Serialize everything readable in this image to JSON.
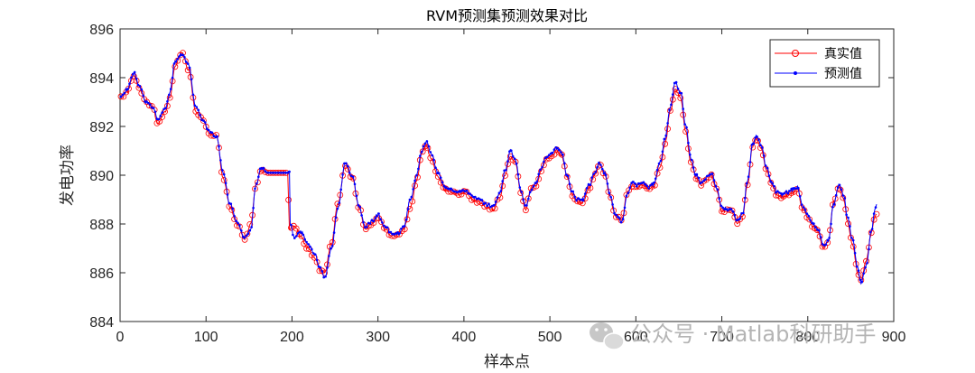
{
  "watermark": {
    "text": "公众号 · Matlab科研助手",
    "icon": "wechat-icon"
  },
  "chart_data": {
    "type": "line",
    "title": "RVM预测集预测效果对比",
    "xlabel": "样本点",
    "ylabel": "发电功率",
    "xlim": [
      0,
      900
    ],
    "ylim": [
      884,
      896
    ],
    "xticks": [
      0,
      100,
      200,
      300,
      400,
      500,
      600,
      700,
      800,
      900
    ],
    "yticks": [
      884,
      886,
      888,
      890,
      892,
      894,
      896
    ],
    "grid": false,
    "legend_position": "top-right",
    "x_range": [
      1,
      880
    ],
    "series": [
      {
        "name": "真实值",
        "color": "#ff0000",
        "marker": "circle",
        "keypoints": [
          [
            1,
            893.2
          ],
          [
            8,
            893.4
          ],
          [
            16,
            894.1
          ],
          [
            22,
            893.6
          ],
          [
            30,
            893.0
          ],
          [
            38,
            892.8
          ],
          [
            44,
            892.1
          ],
          [
            52,
            892.6
          ],
          [
            58,
            893.2
          ],
          [
            64,
            894.5
          ],
          [
            72,
            895.0
          ],
          [
            80,
            894.3
          ],
          [
            88,
            892.6
          ],
          [
            96,
            892.3
          ],
          [
            104,
            891.7
          ],
          [
            112,
            891.6
          ],
          [
            120,
            889.9
          ],
          [
            128,
            888.7
          ],
          [
            136,
            888.0
          ],
          [
            145,
            887.4
          ],
          [
            152,
            888.0
          ],
          [
            158,
            889.6
          ],
          [
            164,
            890.2
          ],
          [
            172,
            890.1
          ],
          [
            190,
            890.1
          ],
          [
            195,
            890.1
          ],
          [
            197,
            887.8
          ],
          [
            203,
            887.9
          ],
          [
            210,
            887.5
          ],
          [
            218,
            887.0
          ],
          [
            226,
            886.6
          ],
          [
            233,
            886.1
          ],
          [
            238,
            886.0
          ],
          [
            246,
            887.2
          ],
          [
            253,
            888.8
          ],
          [
            262,
            890.4
          ],
          [
            270,
            889.9
          ],
          [
            278,
            888.7
          ],
          [
            285,
            887.8
          ],
          [
            293,
            888.0
          ],
          [
            300,
            888.3
          ],
          [
            308,
            887.8
          ],
          [
            316,
            887.5
          ],
          [
            324,
            887.6
          ],
          [
            330,
            887.8
          ],
          [
            338,
            888.7
          ],
          [
            345,
            889.8
          ],
          [
            351,
            890.9
          ],
          [
            356,
            891.2
          ],
          [
            362,
            890.7
          ],
          [
            370,
            889.9
          ],
          [
            378,
            889.4
          ],
          [
            386,
            889.3
          ],
          [
            394,
            889.2
          ],
          [
            402,
            889.3
          ],
          [
            410,
            889.0
          ],
          [
            418,
            888.9
          ],
          [
            426,
            888.7
          ],
          [
            434,
            888.6
          ],
          [
            442,
            889.1
          ],
          [
            448,
            890.0
          ],
          [
            454,
            890.8
          ],
          [
            460,
            890.5
          ],
          [
            466,
            889.3
          ],
          [
            472,
            888.6
          ],
          [
            478,
            889.5
          ],
          [
            484,
            889.6
          ],
          [
            490,
            890.2
          ],
          [
            496,
            890.7
          ],
          [
            502,
            890.8
          ],
          [
            508,
            891.0
          ],
          [
            514,
            890.8
          ],
          [
            520,
            889.9
          ],
          [
            526,
            889.2
          ],
          [
            532,
            888.9
          ],
          [
            538,
            888.9
          ],
          [
            546,
            889.5
          ],
          [
            552,
            890.0
          ],
          [
            558,
            890.5
          ],
          [
            564,
            890.0
          ],
          [
            570,
            889.1
          ],
          [
            576,
            888.3
          ],
          [
            584,
            888.2
          ],
          [
            590,
            889.3
          ],
          [
            596,
            889.6
          ],
          [
            602,
            889.5
          ],
          [
            608,
            889.6
          ],
          [
            614,
            889.4
          ],
          [
            620,
            889.5
          ],
          [
            628,
            890.3
          ],
          [
            634,
            891.3
          ],
          [
            640,
            892.6
          ],
          [
            646,
            893.5
          ],
          [
            652,
            893.2
          ],
          [
            658,
            891.8
          ],
          [
            664,
            890.5
          ],
          [
            670,
            889.9
          ],
          [
            676,
            889.6
          ],
          [
            682,
            889.8
          ],
          [
            688,
            890.0
          ],
          [
            694,
            889.4
          ],
          [
            700,
            888.5
          ],
          [
            706,
            888.6
          ],
          [
            712,
            888.5
          ],
          [
            718,
            888.0
          ],
          [
            724,
            888.3
          ],
          [
            730,
            889.6
          ],
          [
            736,
            891.2
          ],
          [
            740,
            891.5
          ],
          [
            746,
            891.1
          ],
          [
            752,
            890.2
          ],
          [
            758,
            889.6
          ],
          [
            764,
            889.2
          ],
          [
            770,
            889.1
          ],
          [
            776,
            889.2
          ],
          [
            782,
            889.3
          ],
          [
            788,
            889.4
          ],
          [
            794,
            888.6
          ],
          [
            800,
            888.3
          ],
          [
            806,
            887.9
          ],
          [
            812,
            887.7
          ],
          [
            818,
            887.0
          ],
          [
            824,
            887.3
          ],
          [
            830,
            888.9
          ],
          [
            836,
            889.5
          ],
          [
            842,
            889.0
          ],
          [
            846,
            888.1
          ],
          [
            852,
            887.2
          ],
          [
            858,
            886.0
          ],
          [
            862,
            885.7
          ],
          [
            868,
            886.5
          ],
          [
            874,
            887.6
          ],
          [
            878,
            888.3
          ],
          [
            880,
            888.4
          ]
        ]
      },
      {
        "name": "预测值",
        "color": "#0000ff",
        "marker": "point",
        "keypoints": [
          [
            1,
            893.2
          ],
          [
            8,
            893.5
          ],
          [
            16,
            894.2
          ],
          [
            22,
            893.7
          ],
          [
            30,
            893.0
          ],
          [
            38,
            892.8
          ],
          [
            44,
            892.3
          ],
          [
            52,
            892.7
          ],
          [
            58,
            893.4
          ],
          [
            64,
            894.7
          ],
          [
            72,
            895.0
          ],
          [
            80,
            894.5
          ],
          [
            88,
            892.8
          ],
          [
            96,
            892.3
          ],
          [
            104,
            891.8
          ],
          [
            112,
            891.6
          ],
          [
            120,
            890.1
          ],
          [
            128,
            888.8
          ],
          [
            136,
            888.1
          ],
          [
            145,
            887.4
          ],
          [
            152,
            887.8
          ],
          [
            158,
            889.6
          ],
          [
            164,
            890.3
          ],
          [
            172,
            890.1
          ],
          [
            190,
            890.1
          ],
          [
            197,
            890.1
          ],
          [
            198,
            888.0
          ],
          [
            203,
            887.4
          ],
          [
            210,
            887.7
          ],
          [
            218,
            887.2
          ],
          [
            226,
            886.8
          ],
          [
            233,
            886.2
          ],
          [
            238,
            885.8
          ],
          [
            246,
            887.0
          ],
          [
            253,
            888.6
          ],
          [
            262,
            890.5
          ],
          [
            270,
            890.0
          ],
          [
            278,
            888.7
          ],
          [
            285,
            887.9
          ],
          [
            293,
            888.1
          ],
          [
            300,
            888.4
          ],
          [
            308,
            887.9
          ],
          [
            316,
            887.6
          ],
          [
            324,
            887.6
          ],
          [
            330,
            887.9
          ],
          [
            338,
            889.0
          ],
          [
            345,
            890.0
          ],
          [
            351,
            891.0
          ],
          [
            356,
            891.4
          ],
          [
            362,
            890.9
          ],
          [
            370,
            890.1
          ],
          [
            378,
            889.5
          ],
          [
            386,
            889.4
          ],
          [
            394,
            889.3
          ],
          [
            402,
            889.4
          ],
          [
            410,
            889.1
          ],
          [
            418,
            889.0
          ],
          [
            426,
            888.8
          ],
          [
            434,
            888.7
          ],
          [
            442,
            889.3
          ],
          [
            448,
            890.2
          ],
          [
            454,
            891.0
          ],
          [
            460,
            890.6
          ],
          [
            466,
            889.4
          ],
          [
            472,
            888.7
          ],
          [
            478,
            889.4
          ],
          [
            484,
            889.7
          ],
          [
            490,
            890.3
          ],
          [
            496,
            890.8
          ],
          [
            502,
            890.9
          ],
          [
            508,
            891.1
          ],
          [
            514,
            890.9
          ],
          [
            520,
            890.0
          ],
          [
            526,
            889.3
          ],
          [
            532,
            889.0
          ],
          [
            538,
            889.0
          ],
          [
            546,
            889.6
          ],
          [
            552,
            890.1
          ],
          [
            558,
            890.5
          ],
          [
            564,
            890.1
          ],
          [
            570,
            889.2
          ],
          [
            576,
            888.4
          ],
          [
            584,
            888.1
          ],
          [
            590,
            889.2
          ],
          [
            596,
            889.7
          ],
          [
            602,
            889.6
          ],
          [
            608,
            889.7
          ],
          [
            614,
            889.5
          ],
          [
            620,
            889.6
          ],
          [
            628,
            890.5
          ],
          [
            634,
            891.5
          ],
          [
            640,
            892.8
          ],
          [
            646,
            893.8
          ],
          [
            652,
            893.4
          ],
          [
            658,
            892.0
          ],
          [
            664,
            890.7
          ],
          [
            670,
            890.0
          ],
          [
            676,
            889.7
          ],
          [
            682,
            889.9
          ],
          [
            688,
            890.1
          ],
          [
            694,
            889.5
          ],
          [
            700,
            888.7
          ],
          [
            706,
            888.6
          ],
          [
            712,
            888.6
          ],
          [
            718,
            888.1
          ],
          [
            724,
            888.4
          ],
          [
            730,
            889.8
          ],
          [
            736,
            891.3
          ],
          [
            740,
            891.6
          ],
          [
            746,
            891.2
          ],
          [
            752,
            890.3
          ],
          [
            758,
            889.7
          ],
          [
            764,
            889.3
          ],
          [
            770,
            889.2
          ],
          [
            776,
            889.3
          ],
          [
            782,
            889.4
          ],
          [
            788,
            889.5
          ],
          [
            794,
            888.7
          ],
          [
            800,
            888.4
          ],
          [
            806,
            888.0
          ],
          [
            812,
            887.8
          ],
          [
            818,
            887.1
          ],
          [
            824,
            887.3
          ],
          [
            830,
            888.8
          ],
          [
            836,
            889.6
          ],
          [
            842,
            889.2
          ],
          [
            846,
            888.3
          ],
          [
            852,
            887.4
          ],
          [
            858,
            886.2
          ],
          [
            862,
            885.6
          ],
          [
            868,
            886.3
          ],
          [
            874,
            887.7
          ],
          [
            878,
            888.6
          ],
          [
            880,
            888.8
          ]
        ]
      }
    ]
  }
}
